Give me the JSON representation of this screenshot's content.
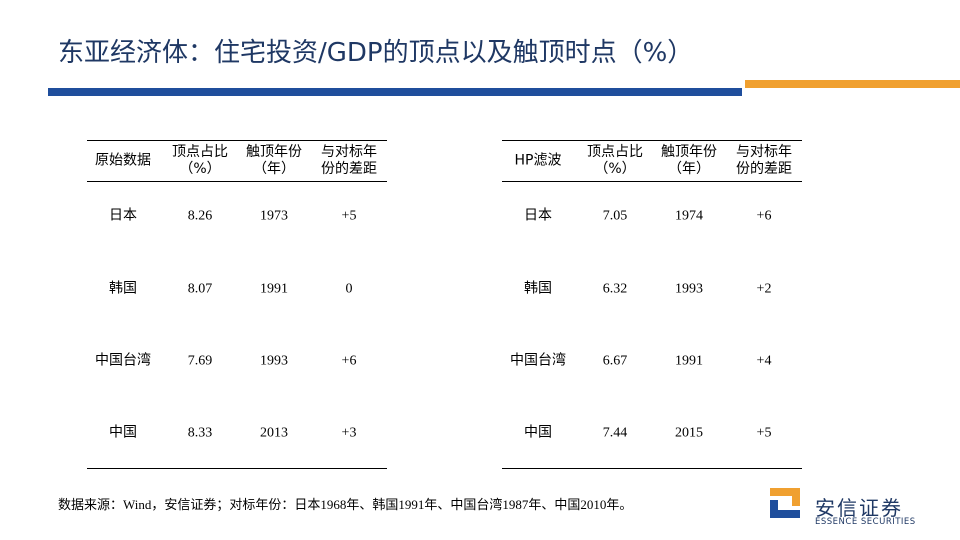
{
  "header": {
    "title": "东亚经济体：住宅投资/GDP的顶点以及触顶时点（%）"
  },
  "tables": [
    {
      "columns": [
        [
          "原始数据"
        ],
        [
          "顶点占比",
          "（%）"
        ],
        [
          "触顶年份",
          "（年）"
        ],
        [
          "与对标年",
          "份的差距"
        ]
      ],
      "rows": [
        [
          "日本",
          "8.26",
          "1973",
          "+5"
        ],
        [
          "韩国",
          "8.07",
          "1991",
          "0"
        ],
        [
          "中国台湾",
          "7.69",
          "1993",
          "+6"
        ],
        [
          "中国",
          "8.33",
          "2013",
          "+3"
        ]
      ]
    },
    {
      "columns": [
        [
          "HP滤波"
        ],
        [
          "顶点占比",
          "（%）"
        ],
        [
          "触顶年份",
          "（年）"
        ],
        [
          "与对标年",
          "份的差距"
        ]
      ],
      "rows": [
        [
          "日本",
          "7.05",
          "1974",
          "+6"
        ],
        [
          "韩国",
          "6.32",
          "1993",
          "+2"
        ],
        [
          "中国台湾",
          "6.67",
          "1991",
          "+4"
        ],
        [
          "中国",
          "7.44",
          "2015",
          "+5"
        ]
      ]
    }
  ],
  "footnote": "数据来源：Wind，安信证券；对标年份：日本1968年、韩国1991年、中国台湾1987年、中国2010年。",
  "logo": {
    "name": "安信证券",
    "subtitle": "ESSENCE SECURITIES"
  }
}
